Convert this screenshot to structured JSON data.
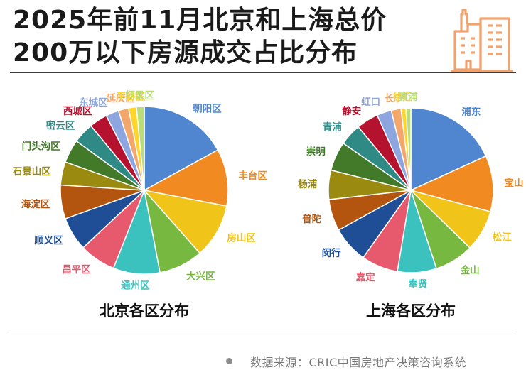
{
  "title": {
    "line1": "2025年前11月北京和上海总价",
    "line2": "200万以下房源成交占比分布"
  },
  "icon": "city-buildings-icon",
  "source": "数据来源：CRIC中国房地产决策咨询系统",
  "colors": {
    "palette": [
      "#4f86cf",
      "#f08a21",
      "#f0c419",
      "#76b840",
      "#3cc2be",
      "#e75a6d",
      "#1f4e96",
      "#b3550f",
      "#9a8a10",
      "#427a2a",
      "#2f8a86",
      "#b5122f",
      "#8da6df",
      "#f4a76a",
      "#ffd52b",
      "#b9dd77"
    ]
  },
  "chart_data": [
    {
      "type": "pie",
      "title": "北京各区分布",
      "slices": [
        {
          "label": "朝阳区",
          "value": 17.0
        },
        {
          "label": "丰台区",
          "value": 11.0
        },
        {
          "label": "房山区",
          "value": 10.5
        },
        {
          "label": "大兴区",
          "value": 8.5
        },
        {
          "label": "通州区",
          "value": 9.0
        },
        {
          "label": "昌平区",
          "value": 7.0
        },
        {
          "label": "顺义区",
          "value": 6.5
        },
        {
          "label": "海淀区",
          "value": 6.5
        },
        {
          "label": "石景山区",
          "value": 4.5
        },
        {
          "label": "门头沟区",
          "value": 4.5
        },
        {
          "label": "密云区",
          "value": 4.0
        },
        {
          "label": "西城区",
          "value": 3.5
        },
        {
          "label": "东城区",
          "value": 2.5
        },
        {
          "label": "延庆区",
          "value": 2.0
        },
        {
          "label": "平谷区",
          "value": 1.5
        },
        {
          "label": "怀柔区",
          "value": 1.5
        }
      ]
    },
    {
      "type": "pie",
      "title": "上海各区分布",
      "slices": [
        {
          "label": "浦东",
          "value": 19.0
        },
        {
          "label": "宝山",
          "value": 11.5
        },
        {
          "label": "松江",
          "value": 8.5
        },
        {
          "label": "金山",
          "value": 8.0
        },
        {
          "label": "奉贤",
          "value": 8.0
        },
        {
          "label": "嘉定",
          "value": 7.5
        },
        {
          "label": "闵行",
          "value": 7.5
        },
        {
          "label": "普陀",
          "value": 6.5
        },
        {
          "label": "杨浦",
          "value": 6.0
        },
        {
          "label": "崇明",
          "value": 6.0
        },
        {
          "label": "青浦",
          "value": 4.5
        },
        {
          "label": "静安",
          "value": 4.5
        },
        {
          "label": "虹口",
          "value": 3.0
        },
        {
          "label": "长宁",
          "value": 2.0
        },
        {
          "label": "徐汇",
          "value": 1.0
        },
        {
          "label": "黄浦",
          "value": 1.0
        }
      ]
    }
  ]
}
